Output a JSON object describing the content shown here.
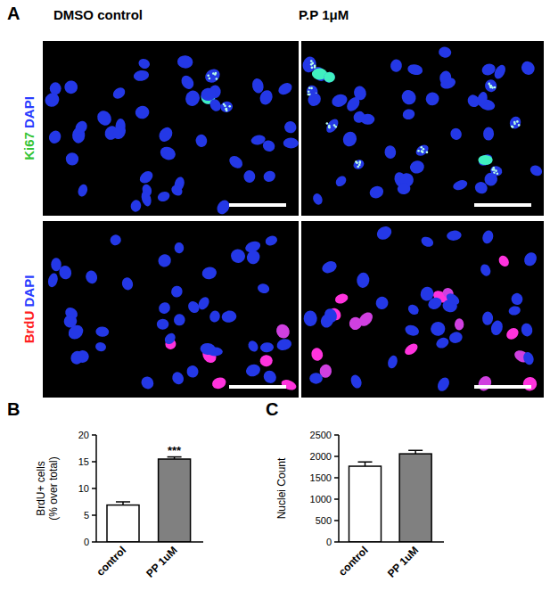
{
  "figure": {
    "panel_labels": [
      "A",
      "B",
      "C"
    ],
    "column_titles": [
      "DMSO control",
      "P.P 1μM"
    ],
    "row_labels": [
      [
        "Ki67",
        "DAPI"
      ],
      [
        "BrdU",
        "DAPI"
      ]
    ]
  },
  "chart_data": [
    {
      "type": "bar",
      "y_label": [
        "BrdU+ cells",
        "(% over total)"
      ],
      "categories": [
        "control",
        "PP 1uM"
      ],
      "values": [
        6.9,
        15.5
      ],
      "errors": [
        0.6,
        0.4
      ],
      "colors": [
        "#ffffff",
        "#808080"
      ],
      "ylim": [
        0,
        20
      ],
      "yticks": [
        0,
        5,
        10,
        15,
        20
      ],
      "annotations": [
        {
          "category": "PP 1uM",
          "text": "***"
        }
      ]
    },
    {
      "type": "bar",
      "y_label": [
        "Nuclei Count"
      ],
      "categories": [
        "control",
        "PP 1uM"
      ],
      "values": [
        1770,
        2060
      ],
      "errors": [
        100,
        80
      ],
      "colors": [
        "#ffffff",
        "#808080"
      ],
      "ylim": [
        0,
        2500
      ],
      "yticks": [
        0,
        500,
        1000,
        1500,
        2000,
        2500
      ]
    }
  ]
}
